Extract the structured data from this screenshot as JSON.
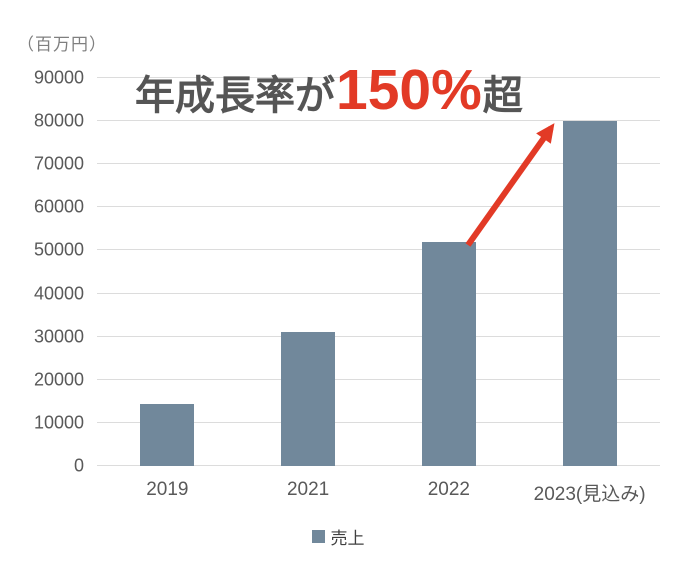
{
  "unit_label": "（百万円）",
  "annotation": {
    "prefix": "年成長率が",
    "highlight": "150%",
    "suffix": "超"
  },
  "legend": {
    "label": "売上"
  },
  "colors": {
    "bar": "#71889b",
    "accent_red": "#e23a26",
    "gridline": "#dcdcdc",
    "axis_text": "#595959",
    "annotation_gray": "#555555",
    "unit_text": "#7f7f7f"
  },
  "chart_data": {
    "type": "bar",
    "categories": [
      "2019",
      "2021",
      "2022",
      "2023(見込み)"
    ],
    "values": [
      14500,
      31000,
      52000,
      80000
    ],
    "series": [
      {
        "name": "売上",
        "values": [
          14500,
          31000,
          52000,
          80000
        ]
      }
    ],
    "title": "",
    "xlabel": "",
    "ylabel": "（百万円）",
    "ylim": [
      0,
      90000
    ],
    "yticks": [
      0,
      10000,
      20000,
      30000,
      40000,
      50000,
      60000,
      70000,
      80000,
      90000
    ],
    "grid": true,
    "legend_position": "bottom",
    "annotation_text": "年成長率が150%超",
    "annotation_arrow": "from top of 2022 bar to top of 2023 bar"
  }
}
